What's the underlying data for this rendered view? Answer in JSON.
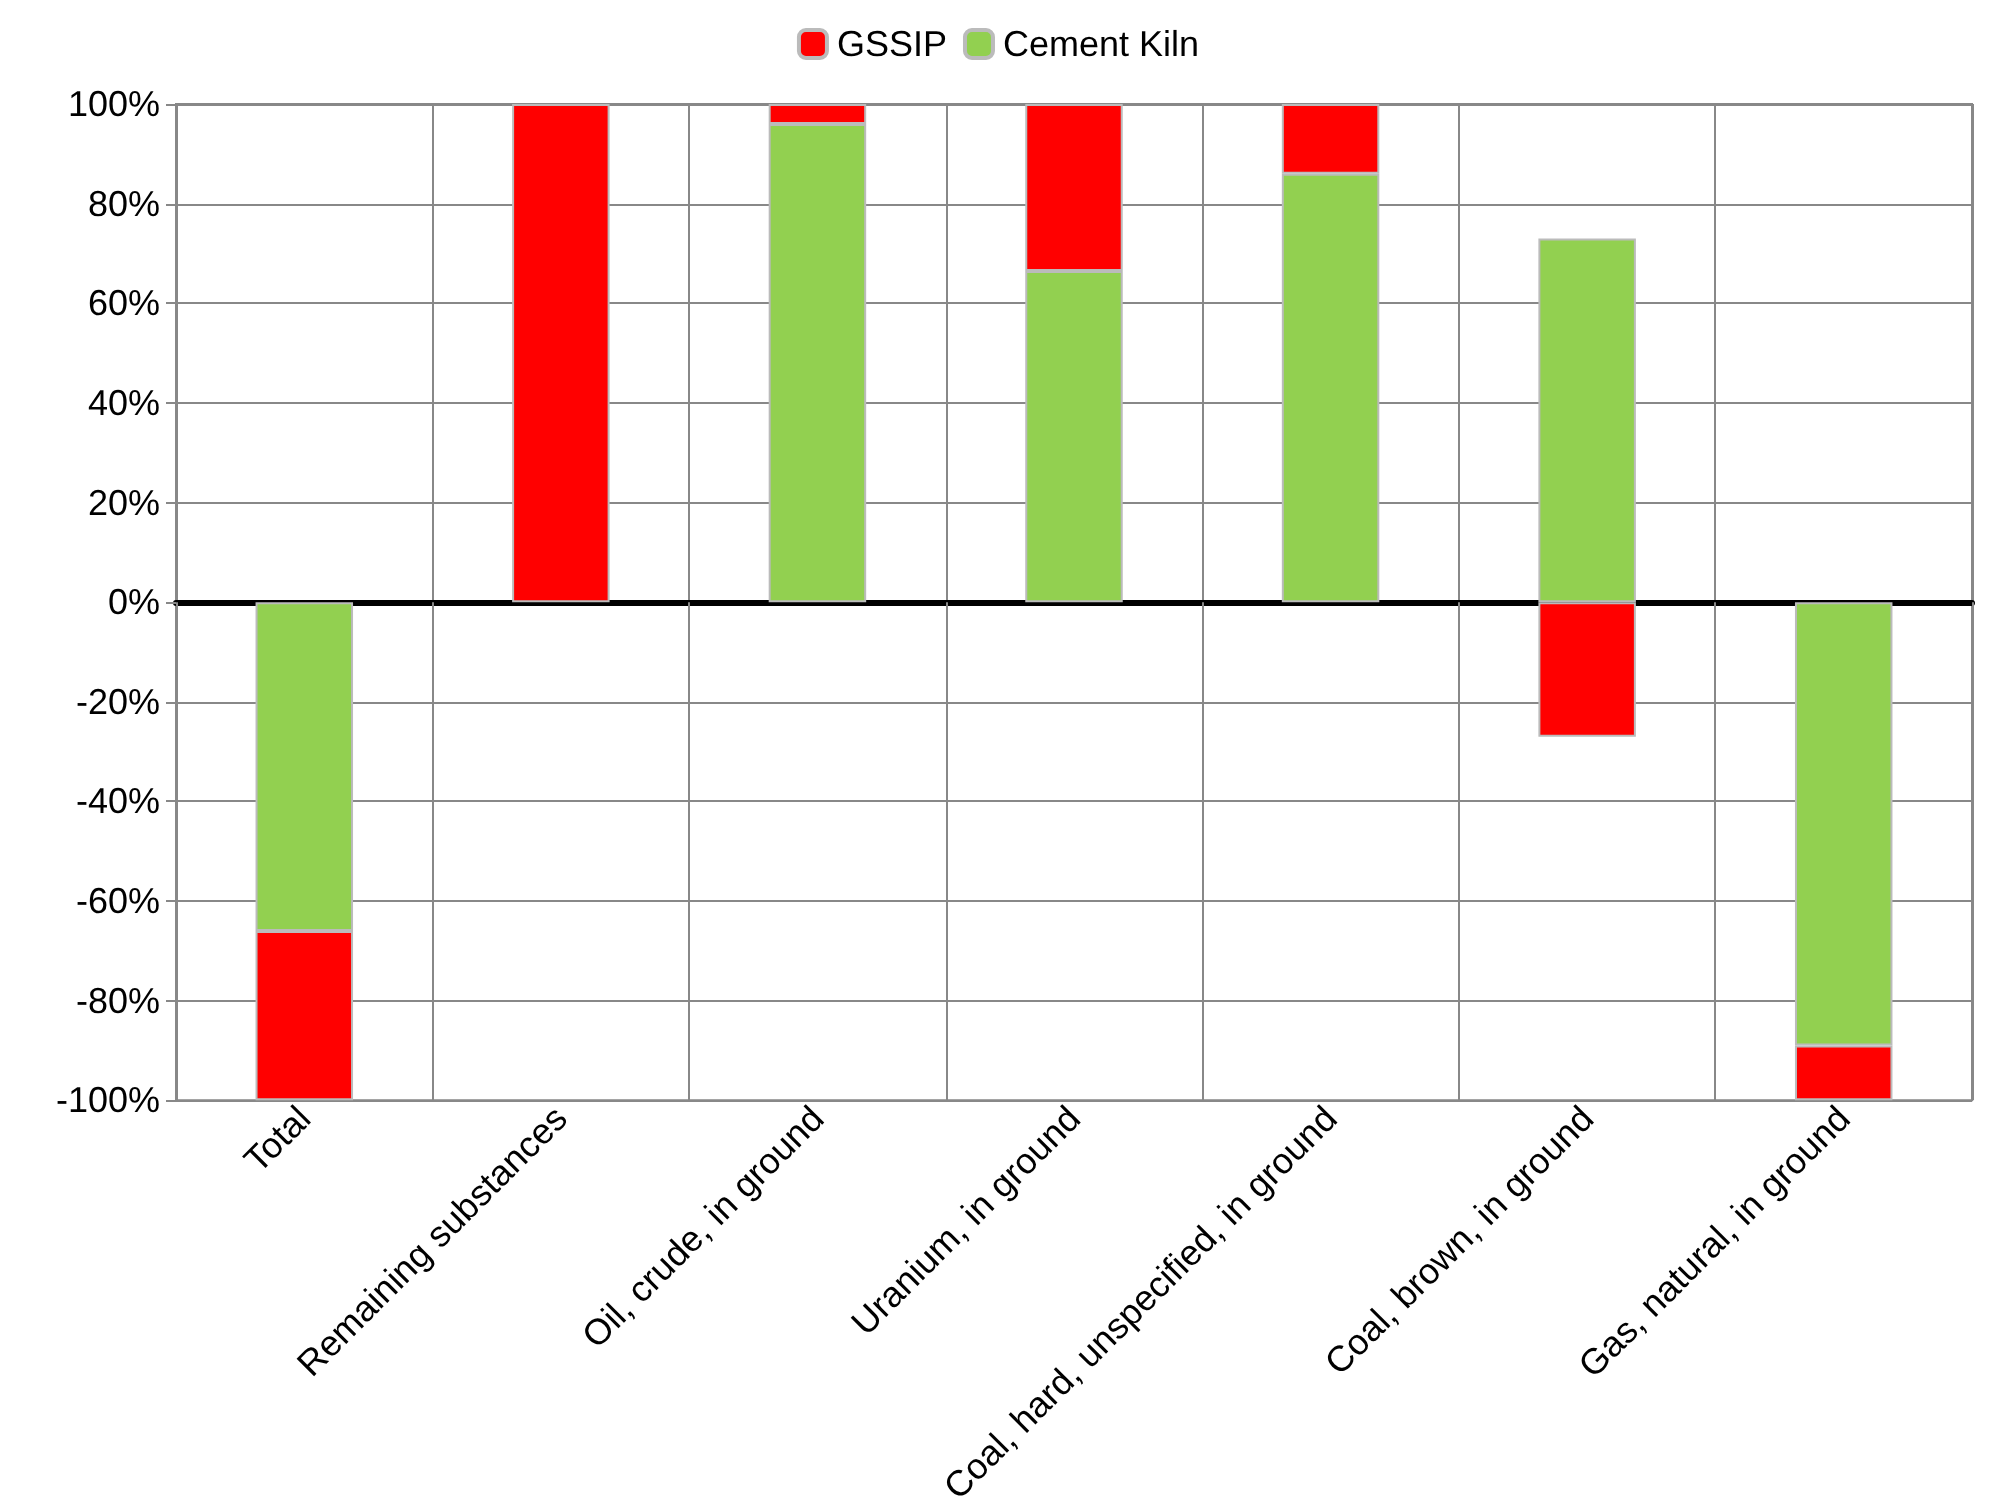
{
  "chart_data": {
    "type": "bar",
    "stacked": true,
    "categories": [
      "Total",
      "Remaining substances",
      "Oil, crude, in ground",
      "Uranium, in ground",
      "Coal, hard, unspecified, in ground",
      "Coal, brown, in ground",
      "Gas, natural, in ground"
    ],
    "series": [
      {
        "name": "Cement Kiln",
        "color": "#92d050",
        "values": [
          -66,
          null,
          96,
          66.5,
          86,
          73,
          -89
        ]
      },
      {
        "name": "GSSIP",
        "color": "#ff0000",
        "values": [
          -34,
          100,
          4,
          33.5,
          14,
          -27,
          -11
        ]
      }
    ],
    "ylim": [
      -100,
      100
    ],
    "yticks": [
      {
        "value": -100,
        "label": "-100%"
      },
      {
        "value": -80,
        "label": "-80%"
      },
      {
        "value": -60,
        "label": "-60%"
      },
      {
        "value": -40,
        "label": "-40%"
      },
      {
        "value": -20,
        "label": "-20%"
      },
      {
        "value": 0,
        "label": "0%"
      },
      {
        "value": 20,
        "label": "20%"
      },
      {
        "value": 40,
        "label": "40%"
      },
      {
        "value": 60,
        "label": "60%"
      },
      {
        "value": 80,
        "label": "80%"
      },
      {
        "value": 100,
        "label": "100%"
      }
    ],
    "grid": true,
    "legend": "top"
  }
}
